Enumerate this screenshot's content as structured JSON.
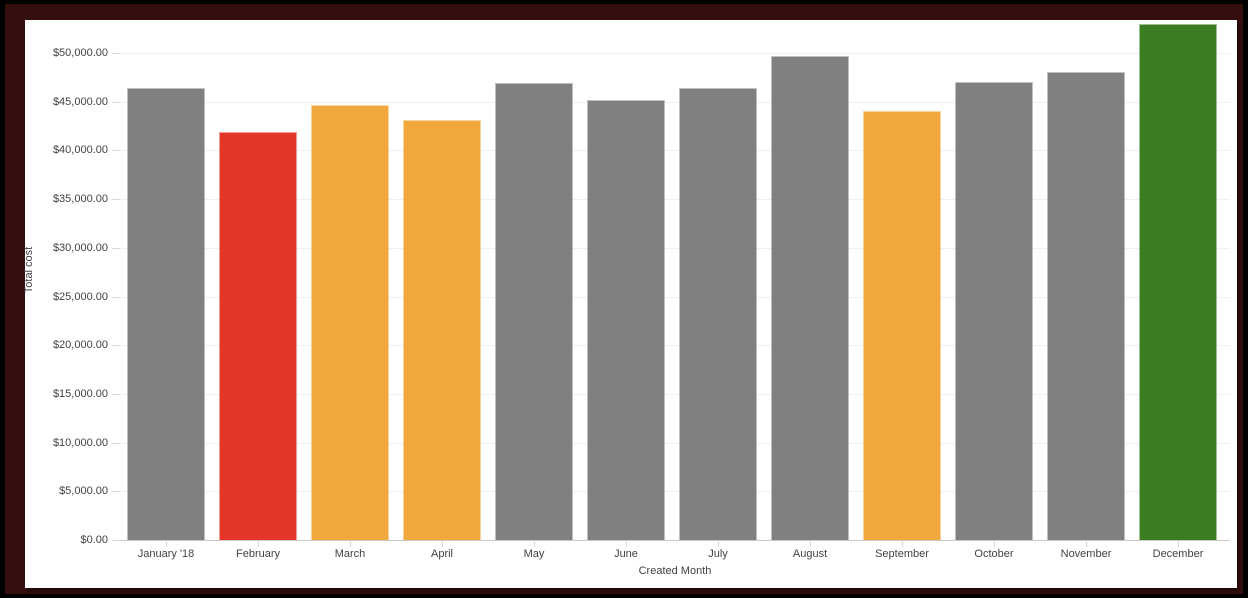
{
  "frame": {
    "outer_color": "#000000",
    "border_color": "#350e0e",
    "panel_color": "#ffffff"
  },
  "colors": {
    "gray": "#808080",
    "red": "#e5362a",
    "orange": "#f0a73c",
    "green": "#3a7d22",
    "text": "#424242",
    "gridline": "#efefef",
    "axis_line": "#cccccc",
    "tick": "#d9d9d9"
  },
  "chart_data": {
    "type": "bar",
    "title": "",
    "xlabel": "Created Month",
    "ylabel": "Total cost",
    "categories": [
      "January '18",
      "February",
      "March",
      "April",
      "May",
      "June",
      "July",
      "August",
      "September",
      "October",
      "November",
      "December"
    ],
    "values": [
      46400,
      41900,
      44700,
      43100,
      46900,
      45200,
      46400,
      49700,
      44000,
      47000,
      48000,
      53000
    ],
    "bar_colors": [
      "#808080",
      "#e5362a",
      "#f0a73c",
      "#f0a73c",
      "#808080",
      "#808080",
      "#808080",
      "#808080",
      "#f0a73c",
      "#808080",
      "#808080",
      "#3a7d22"
    ],
    "ylim": [
      0,
      53400
    ],
    "ytick_values": [
      0,
      5000,
      10000,
      15000,
      20000,
      25000,
      30000,
      35000,
      40000,
      45000,
      50000
    ],
    "ytick_labels": [
      "$0.00",
      "$5,000.00",
      "$10,000.00",
      "$15,000.00",
      "$20,000.00",
      "$25,000.00",
      "$30,000.00",
      "$35,000.00",
      "$40,000.00",
      "$45,000.00",
      "$50,000.00"
    ],
    "grid": "horizontal",
    "legend": "none"
  }
}
